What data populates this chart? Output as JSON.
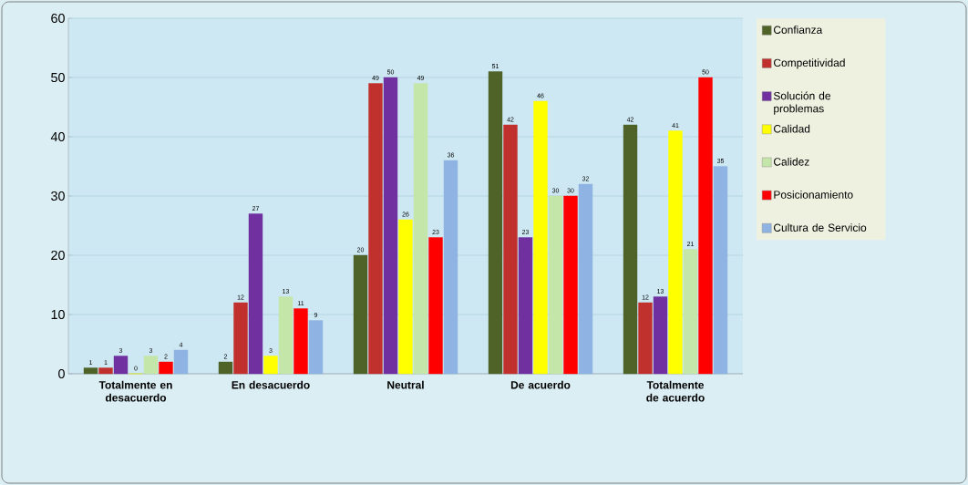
{
  "chart_data": {
    "type": "bar",
    "categories": [
      "Totalmente en desacuerdo",
      "En desacuerdo",
      "Neutral",
      "De acuerdo",
      "Totalmente de acuerdo"
    ],
    "series": [
      {
        "name": "Confianza",
        "color": "#4f6228",
        "values": [
          1,
          2,
          20,
          51,
          42
        ]
      },
      {
        "name": "Competitividad",
        "color": "#c0302c",
        "values": [
          1,
          12,
          49,
          42,
          12
        ]
      },
      {
        "name": "Solución de problemas",
        "color": "#7030a0",
        "values": [
          3,
          27,
          50,
          23,
          13
        ]
      },
      {
        "name": "Calidad",
        "color": "#ffff00",
        "values": [
          0,
          3,
          26,
          46,
          41
        ]
      },
      {
        "name": "Calidez",
        "color": "#c4e6a8",
        "values": [
          3,
          13,
          49,
          30,
          21
        ]
      },
      {
        "name": "Posicionamiento",
        "color": "#ff0000",
        "values": [
          2,
          11,
          23,
          30,
          50
        ]
      },
      {
        "name": "Cultura de Servicio",
        "color": "#8fb4e3",
        "values": [
          4,
          9,
          36,
          32,
          35
        ]
      }
    ],
    "ylim": [
      0,
      60
    ],
    "yticks": [
      0,
      10,
      20,
      30,
      40,
      50,
      60
    ],
    "grid": "y",
    "legend": "right",
    "data_labels": true
  }
}
